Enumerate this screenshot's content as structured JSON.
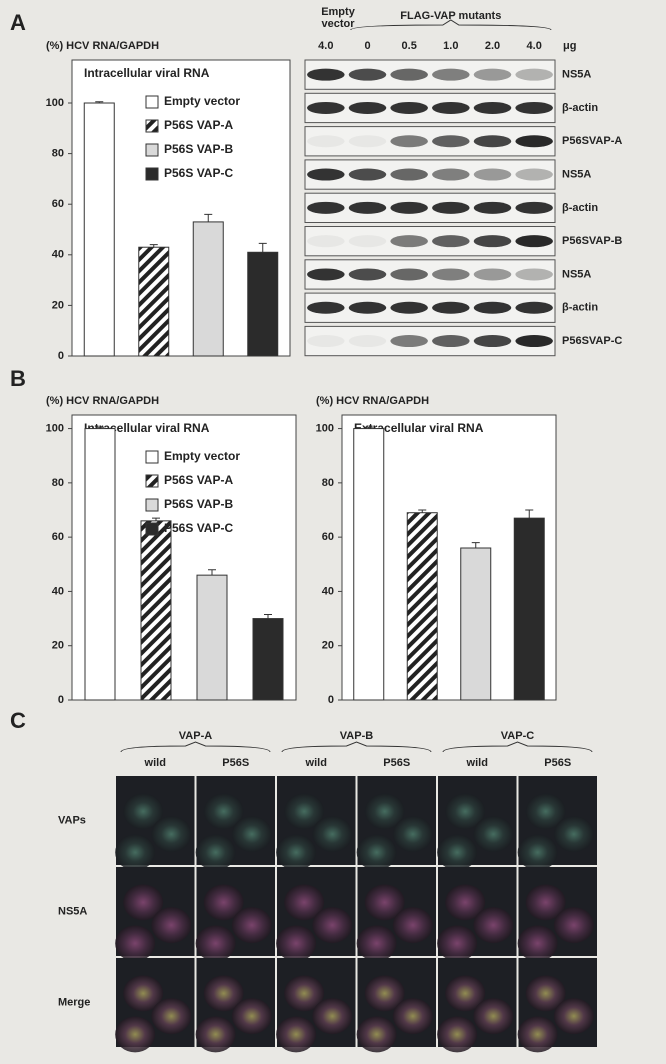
{
  "panels": {
    "a": "A",
    "b": "B",
    "c": "C"
  },
  "chart_data": [
    {
      "type": "bar",
      "y_label": "(%) HCV RNA/GAPDH",
      "title": "Intracellular viral RNA",
      "categories": [
        "Empty vector",
        "P56S VAP-A",
        "P56S VAP-B",
        "P56S VAP-C"
      ],
      "values": [
        100,
        43,
        53,
        41
      ],
      "errors": [
        0.5,
        1,
        3,
        3.5
      ],
      "colors": [
        "#ffffff",
        "#ffffff",
        "#d9d9d9",
        "#2b2b2b"
      ],
      "hatched": [
        false,
        true,
        false,
        false
      ],
      "ylim": [
        0,
        117
      ],
      "yticks": [
        0,
        20,
        40,
        60,
        80,
        100
      ],
      "legend": "upper right"
    },
    {
      "type": "bar",
      "y_label": "(%) HCV RNA/GAPDH",
      "title": "Intracellular viral RNA",
      "categories": [
        "Empty vector",
        "P56S VAP-A",
        "P56S VAP-B",
        "P56S VAP-C"
      ],
      "values": [
        100,
        66,
        46,
        30
      ],
      "errors": [
        0.5,
        1,
        2,
        1.5
      ],
      "colors": [
        "#ffffff",
        "#ffffff",
        "#d9d9d9",
        "#2b2b2b"
      ],
      "hatched": [
        false,
        true,
        false,
        false
      ],
      "ylim": [
        0,
        105
      ],
      "yticks": [
        0,
        20,
        40,
        60,
        80,
        100
      ],
      "legend": "upper right"
    },
    {
      "type": "bar",
      "y_label": "(%) HCV RNA/GAPDH",
      "title": "Extracellular viral RNA",
      "values": [
        100,
        69,
        56,
        67
      ],
      "errors": [
        0.5,
        1,
        2,
        3
      ],
      "colors": [
        "#ffffff",
        "#ffffff",
        "#d9d9d9",
        "#2b2b2b"
      ],
      "hatched": [
        false,
        true,
        false,
        false
      ],
      "ylim": [
        0,
        105
      ],
      "yticks": [
        0,
        20,
        40,
        60,
        80,
        100
      ]
    }
  ],
  "blot": {
    "empty": "Empty vector",
    "group": "FLAG-VAP mutants",
    "lanes": [
      "4.0",
      "0",
      "0.5",
      "1.0",
      "2.0",
      "4.0"
    ],
    "unit": "μg",
    "rows": [
      "NS5A",
      "β-actin",
      "P56SVAP-A",
      "NS5A",
      "β-actin",
      "P56SVAP-B",
      "NS5A",
      "β-actin",
      "P56SVAP-C"
    ]
  },
  "microscopy": {
    "groups": [
      "VAP-A",
      "VAP-B",
      "VAP-C"
    ],
    "columns": [
      "wild",
      "P56S",
      "wild",
      "P56S",
      "wild",
      "P56S"
    ],
    "rows": [
      "VAPs",
      "NS5A",
      "Merge"
    ]
  }
}
